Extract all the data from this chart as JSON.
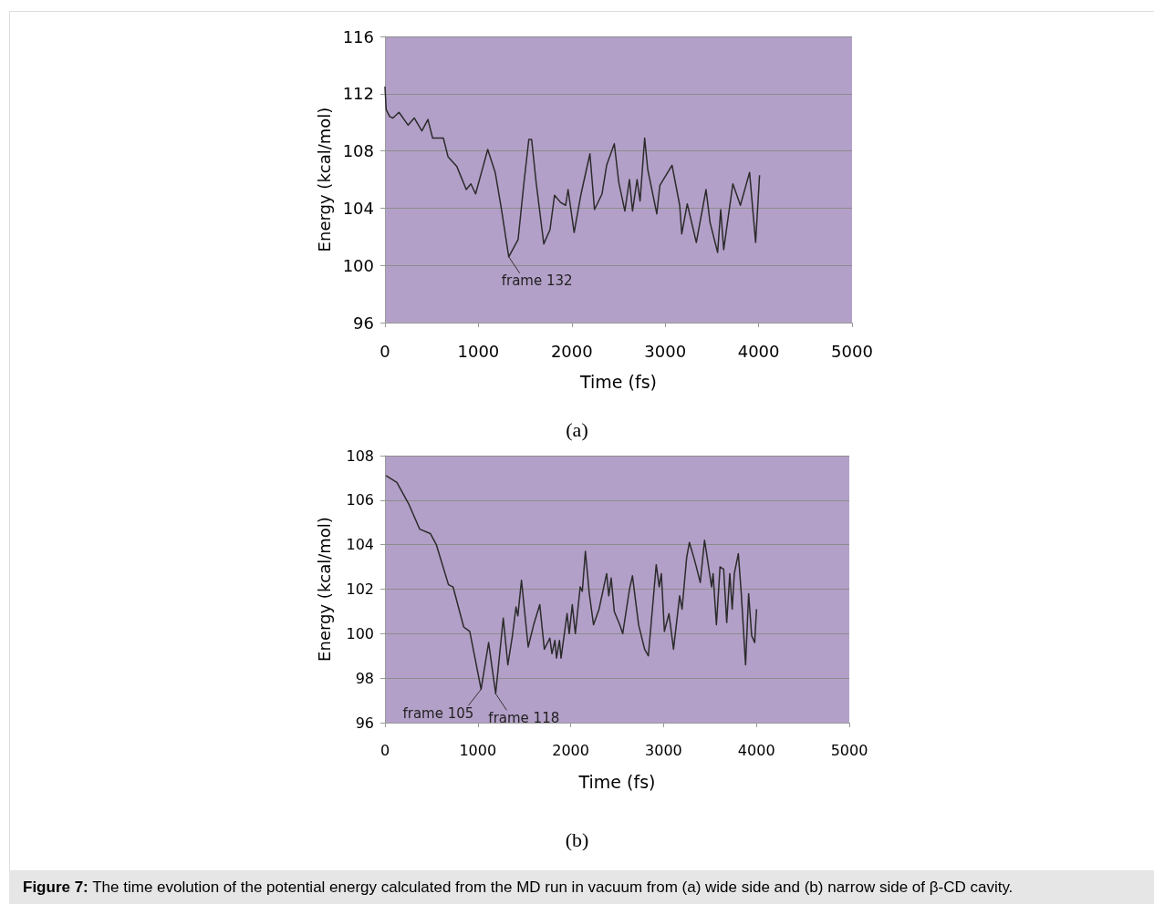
{
  "chart_data": [
    {
      "type": "line",
      "title": "(a)",
      "xlabel": "Time (fs)",
      "ylabel": "Energy (kcal/mol)",
      "xlim": [
        0,
        5000
      ],
      "xticks": [
        0,
        1000,
        2000,
        3000,
        4000,
        5000
      ],
      "ylim": [
        96,
        116
      ],
      "yticks": [
        96,
        100,
        104,
        108,
        112,
        116
      ],
      "grid": "y",
      "marker": "none",
      "line_style": "solid",
      "series": [
        {
          "color": "#2b2b2b",
          "x": [
            0,
            13,
            50,
            85,
            150,
            248,
            313,
            395,
            460,
            510,
            625,
            675,
            770,
            870,
            920,
            970,
            1050,
            1100,
            1180,
            1245,
            1325,
            1425,
            1485,
            1540,
            1570,
            1620,
            1700,
            1767,
            1815,
            1880,
            1934,
            1960,
            2025,
            2096,
            2194,
            2243,
            2324,
            2373,
            2455,
            2503,
            2568,
            2617,
            2650,
            2699,
            2731,
            2780,
            2813,
            2910,
            2943,
            3073,
            3155,
            3177,
            3236,
            3333,
            3437,
            3480,
            3561,
            3594,
            3626,
            3724,
            3805,
            3903,
            3968,
            4010
          ],
          "values": [
            112.5,
            110.9,
            110.4,
            110.3,
            110.7,
            109.8,
            110.3,
            109.4,
            110.2,
            108.9,
            108.9,
            107.6,
            106.9,
            105.3,
            105.7,
            105.0,
            106.9,
            108.1,
            106.5,
            104.0,
            100.6,
            101.8,
            105.6,
            108.8,
            108.8,
            105.7,
            101.5,
            102.5,
            104.9,
            104.4,
            104.2,
            105.3,
            102.3,
            104.9,
            107.8,
            103.9,
            105.0,
            107.0,
            108.5,
            105.8,
            103.8,
            106.0,
            103.8,
            106.0,
            104.5,
            108.9,
            106.7,
            103.6,
            105.6,
            107.0,
            104.2,
            102.2,
            104.3,
            101.6,
            105.3,
            103.0,
            100.9,
            103.9,
            101.1,
            105.7,
            104.2,
            106.5,
            101.6,
            106.3
          ]
        }
      ],
      "annotations": [
        {
          "text": "frame 132",
          "x": 1325,
          "y": 100.6
        }
      ]
    },
    {
      "type": "line",
      "title": "(b)",
      "xlabel": "Time (fs)",
      "ylabel": "Energy (kcal/mol)",
      "xlim": [
        0,
        5000
      ],
      "xticks": [
        0,
        1000,
        2000,
        3000,
        4000,
        5000
      ],
      "ylim": [
        96,
        108
      ],
      "yticks": [
        96,
        98,
        100,
        102,
        104,
        106,
        108
      ],
      "grid": "y",
      "marker": "none",
      "line_style": "solid",
      "series": [
        {
          "color": "#2b2b2b",
          "x": [
            10,
            128,
            259,
            373,
            488,
            553,
            684,
            733,
            848,
            913,
            1035,
            1116,
            1192,
            1274,
            1323,
            1372,
            1411,
            1431,
            1470,
            1542,
            1601,
            1667,
            1716,
            1775,
            1798,
            1830,
            1847,
            1879,
            1896,
            1961,
            1984,
            2017,
            2050,
            2102,
            2125,
            2158,
            2200,
            2246,
            2305,
            2387,
            2410,
            2436,
            2469,
            2528,
            2560,
            2633,
            2665,
            2731,
            2796,
            2836,
            2921,
            2953,
            2976,
            3009,
            3058,
            3107,
            3173,
            3199,
            3248,
            3278,
            3320,
            3353,
            3395,
            3441,
            3467,
            3517,
            3533,
            3569,
            3608,
            3647,
            3680,
            3713,
            3739,
            3762,
            3805,
            3837,
            3883,
            3916,
            3949,
            3981,
            4001
          ],
          "values": [
            107.1,
            106.8,
            105.8,
            104.7,
            104.5,
            104.0,
            102.2,
            102.1,
            100.3,
            100.1,
            97.5,
            99.6,
            97.3,
            100.7,
            98.6,
            99.9,
            101.2,
            100.8,
            102.4,
            99.4,
            100.4,
            101.3,
            99.3,
            99.8,
            99.1,
            99.7,
            98.9,
            99.7,
            98.9,
            100.9,
            100.0,
            101.3,
            100.0,
            102.1,
            101.9,
            103.7,
            101.8,
            100.4,
            101.1,
            102.7,
            101.7,
            102.5,
            101.0,
            100.4,
            100.0,
            102.0,
            102.6,
            100.4,
            99.3,
            99.0,
            103.1,
            102.1,
            102.7,
            100.1,
            100.9,
            99.3,
            101.7,
            101.1,
            103.4,
            104.1,
            103.5,
            103.0,
            102.3,
            104.2,
            103.5,
            102.1,
            102.7,
            100.4,
            103.0,
            102.9,
            100.5,
            102.7,
            101.1,
            102.7,
            103.6,
            101.8,
            98.6,
            101.8,
            99.9,
            99.6,
            101.1
          ]
        }
      ],
      "annotations": [
        {
          "text": "frame 105",
          "x": 1035,
          "y": 97.5
        },
        {
          "text": "frame 118",
          "x": 1192,
          "y": 97.3
        },
        "Figure 7: The time evolution of the potential energy calculated from the MD run in vacuum from (a) wide side and (b) narrow side of β-CD cavity."
      ]
    }
  ]
}
